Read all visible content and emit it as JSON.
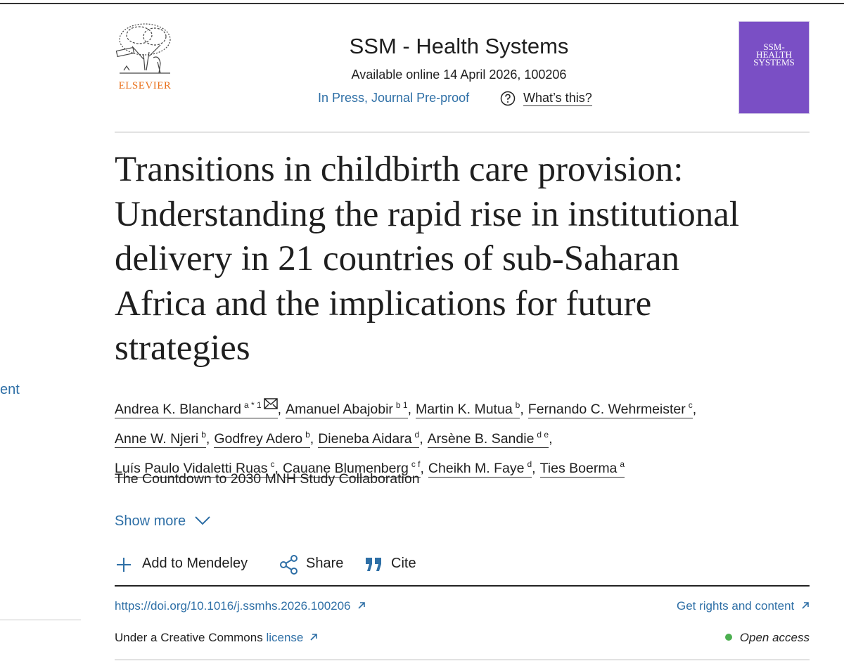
{
  "sidebar_fragment": "ent",
  "header": {
    "publisher": "ELSEVIER",
    "journal": "SSM - Health Systems",
    "available": "Available online 14 April 2026, 100206",
    "status": "In Press, Journal Pre-proof",
    "whats_this": "What’s this?",
    "cover_lines": [
      "SSM-",
      "HEALTH",
      "SYSTEMS"
    ]
  },
  "article": {
    "title_lines": [
      "Transitions in childbirth care provision:",
      "Understanding the rapid rise in institutional",
      "delivery in 21 countries of sub-Saharan",
      "Africa and the implications for future",
      "strategies"
    ],
    "separator": ",",
    "author_rows": [
      [
        {
          "name": "Andrea K. Blanchard",
          "sup": "a * 1",
          "corresponding": true
        },
        {
          "name": "Amanuel Abajobir",
          "sup": "b 1"
        },
        {
          "name": "Martin K. Mutua",
          "sup": "b"
        },
        {
          "name": "Fernando C. Wehrmeister",
          "sup": "c"
        }
      ],
      [
        {
          "name": "Anne W. Njeri",
          "sup": "b"
        },
        {
          "name": "Godfrey Adero",
          "sup": "b"
        },
        {
          "name": "Dieneba Aidara",
          "sup": "d"
        },
        {
          "name": "Arsène B. Sandie",
          "sup": "d e"
        }
      ],
      [
        {
          "name": "Luís Paulo Vidaletti Ruas",
          "sup": "c"
        },
        {
          "name": "Cauane Blumenberg",
          "sup": "c f"
        },
        {
          "name": "Cheikh M. Faye",
          "sup": "d"
        },
        {
          "name": "Ties Boerma",
          "sup": "a"
        }
      ]
    ],
    "collaboration": "The Countdown to 2030 MNH Study Collaboration",
    "show_more": "Show more",
    "actions": {
      "mendeley": "Add to Mendeley",
      "share": "Share",
      "cite": "Cite"
    },
    "doi": "https://doi.org/10.1016/j.ssmhs.2026.100206",
    "rights": "Get rights and content",
    "license_prefix": "Under a Creative Commons",
    "license_link": "license",
    "open_access": "Open access"
  }
}
